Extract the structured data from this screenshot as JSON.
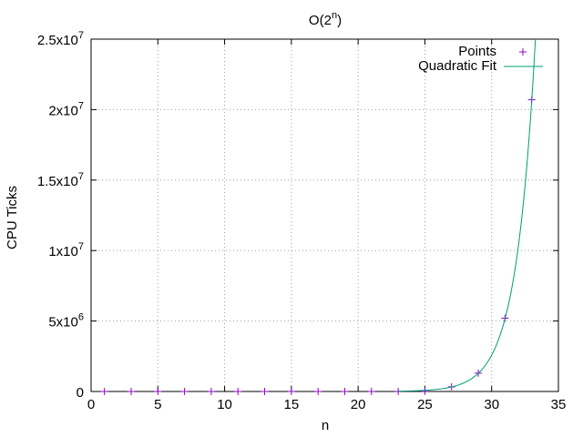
{
  "chart_data": {
    "type": "scatter",
    "title": {
      "base": "O(2",
      "sup": "n",
      "suffix": ")"
    },
    "xlabel": "n",
    "ylabel": "CPU Ticks",
    "xlim": [
      0,
      35
    ],
    "ylim": [
      0,
      25000000
    ],
    "grid": true,
    "legend_position": "top-right",
    "x_ticks": [
      {
        "value": 0,
        "label": "0"
      },
      {
        "value": 5,
        "label": "5"
      },
      {
        "value": 10,
        "label": "10"
      },
      {
        "value": 15,
        "label": "15"
      },
      {
        "value": 20,
        "label": "20"
      },
      {
        "value": 25,
        "label": "25"
      },
      {
        "value": 30,
        "label": "30"
      },
      {
        "value": 35,
        "label": "35"
      }
    ],
    "y_ticks": [
      {
        "value": 0,
        "base": "0",
        "exp": ""
      },
      {
        "value": 5000000,
        "base": "5x10",
        "exp": "6"
      },
      {
        "value": 10000000,
        "base": "1x10",
        "exp": "7"
      },
      {
        "value": 15000000,
        "base": "1.5x10",
        "exp": "7"
      },
      {
        "value": 20000000,
        "base": "2x10",
        "exp": "7"
      },
      {
        "value": 25000000,
        "base": "2.5x10",
        "exp": "7"
      }
    ],
    "series": [
      {
        "name": "Points",
        "kind": "points",
        "color": "#9400d3",
        "x": [
          1,
          3,
          5,
          7,
          9,
          11,
          13,
          15,
          17,
          19,
          21,
          23,
          25,
          27,
          29,
          31,
          33
        ],
        "y": [
          0,
          0,
          0,
          0,
          0,
          0,
          0,
          0,
          0,
          0,
          0,
          3000,
          15000,
          330000,
          1300000,
          5200000,
          20700000
        ]
      },
      {
        "name": "Quadratic Fit",
        "kind": "line",
        "color": "#009e73",
        "fit": {
          "form": "a*2^x",
          "a": 0.0024,
          "x_range": [
            23,
            33.4
          ]
        }
      }
    ]
  }
}
